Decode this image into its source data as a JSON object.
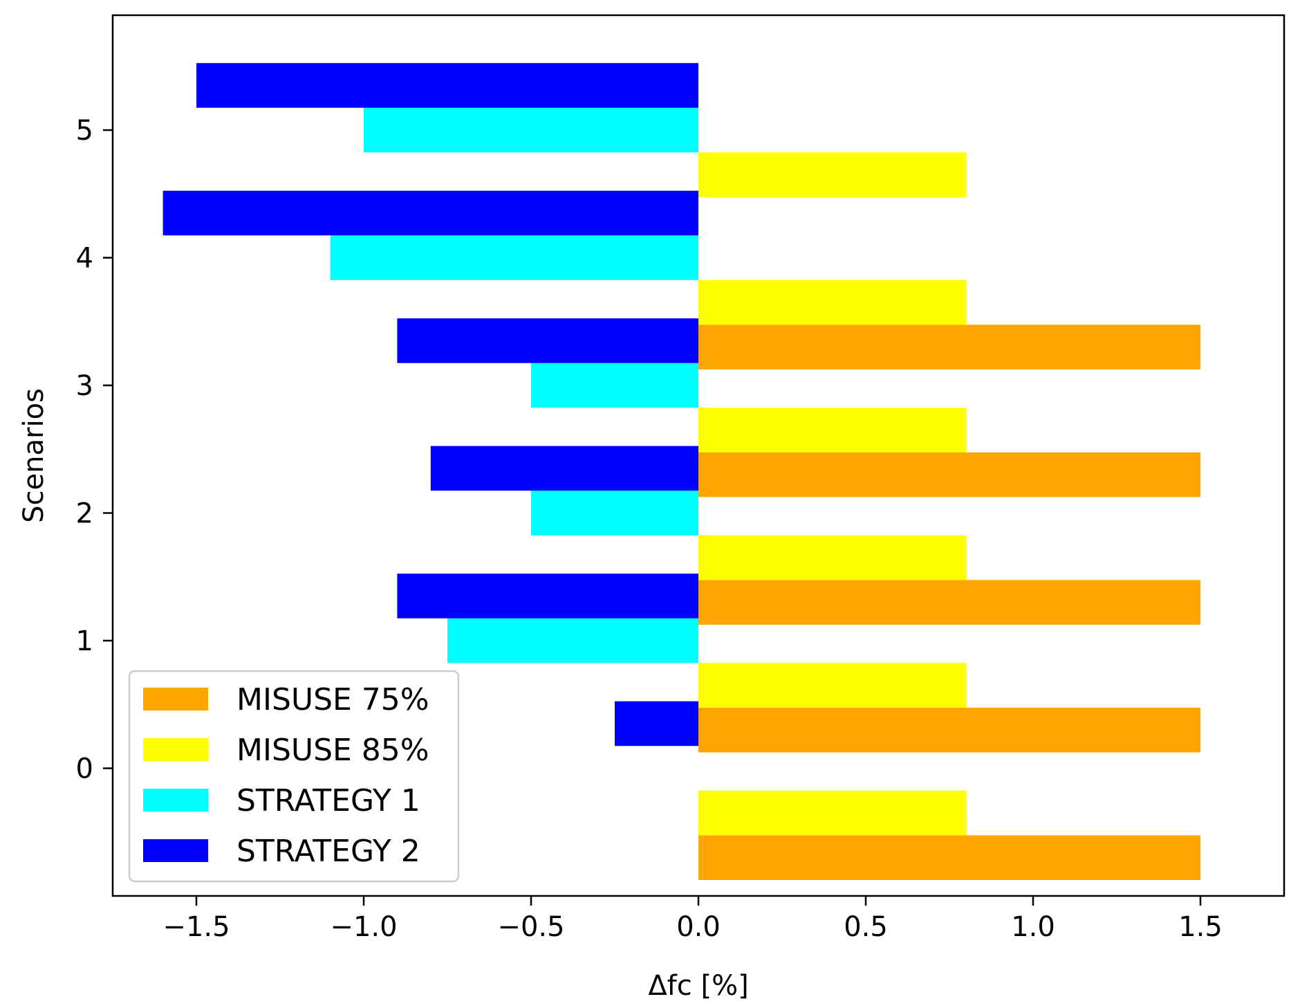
{
  "chart_data": {
    "type": "bar",
    "orientation": "horizontal",
    "xlabel": "Δfc [%]",
    "ylabel": "Scenarios",
    "xlim": [
      -1.75,
      1.75
    ],
    "ylim": [
      -1.0,
      5.9
    ],
    "xticks": [
      -1.5,
      -1.0,
      -0.5,
      0.0,
      0.5,
      1.0,
      1.5
    ],
    "xtick_labels": [
      "−1.5",
      "−1.0",
      "−0.5",
      "0.0",
      "0.5",
      "1.0",
      "1.5"
    ],
    "yticks": [
      0,
      1,
      2,
      3,
      4,
      5
    ],
    "ytick_labels": [
      "0",
      "1",
      "2",
      "3",
      "4",
      "5"
    ],
    "grid": false,
    "legend_position": "bottom-left",
    "series": [
      {
        "name": "MISUSE 75%",
        "color": "#FFA500",
        "offset": -0.7,
        "values": [
          1.5,
          1.5,
          1.5,
          1.5,
          1.5,
          0
        ]
      },
      {
        "name": "MISUSE 85%",
        "color": "#FFFF00",
        "offset": -0.35,
        "values": [
          0.8,
          0.8,
          0.8,
          0.8,
          0.8,
          0.8
        ]
      },
      {
        "name": "STRATEGY 1",
        "color": "#00FFFF",
        "offset": 0.0,
        "values": [
          0,
          -0.75,
          -0.5,
          -0.5,
          -1.1,
          -1.0
        ]
      },
      {
        "name": "STRATEGY 2",
        "color": "#0000FF",
        "offset": 0.35,
        "values": [
          -0.25,
          -0.9,
          -0.8,
          -0.9,
          -1.6,
          -1.5
        ]
      }
    ],
    "categories": [
      0,
      1,
      2,
      3,
      4,
      5
    ]
  }
}
